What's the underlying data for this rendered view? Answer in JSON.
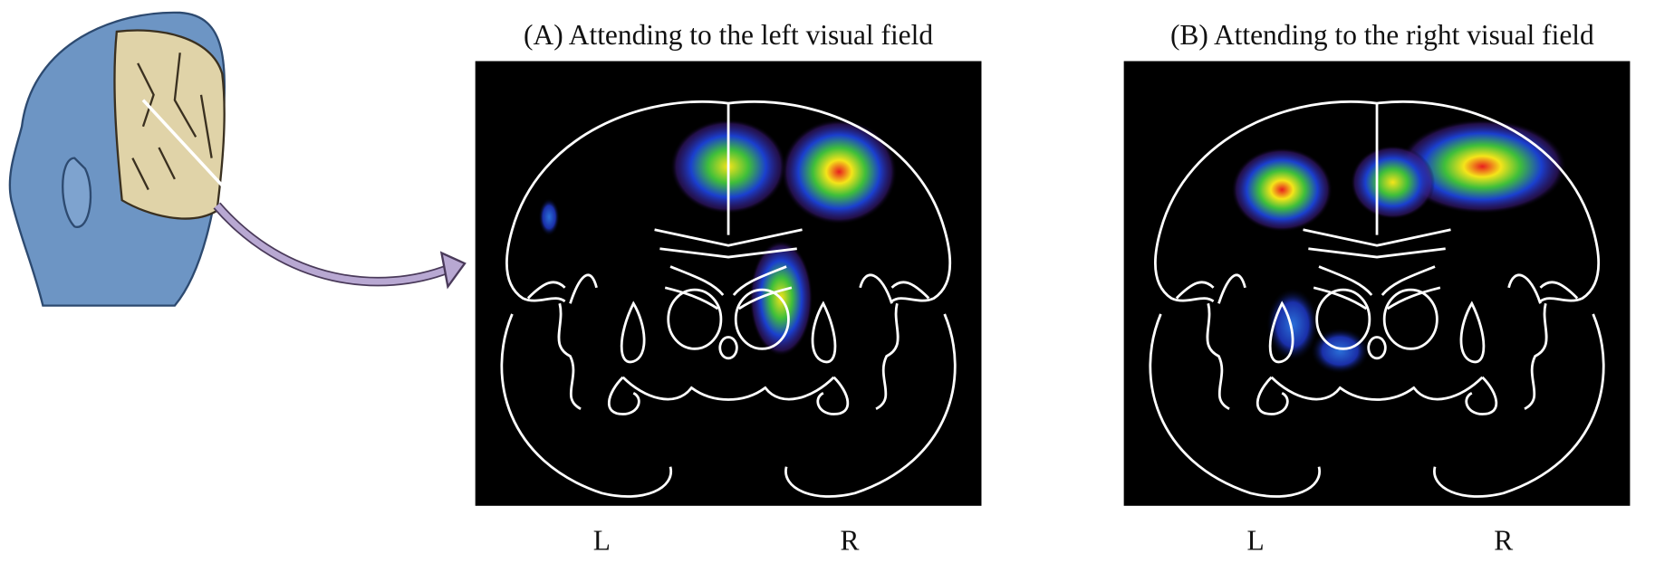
{
  "panels": [
    {
      "title": "(A)  Attending to the left visual field",
      "left_label": "L",
      "right_label": "R"
    },
    {
      "title": "(B)  Attending to the right visual field",
      "left_label": "L",
      "right_label": "R"
    }
  ]
}
